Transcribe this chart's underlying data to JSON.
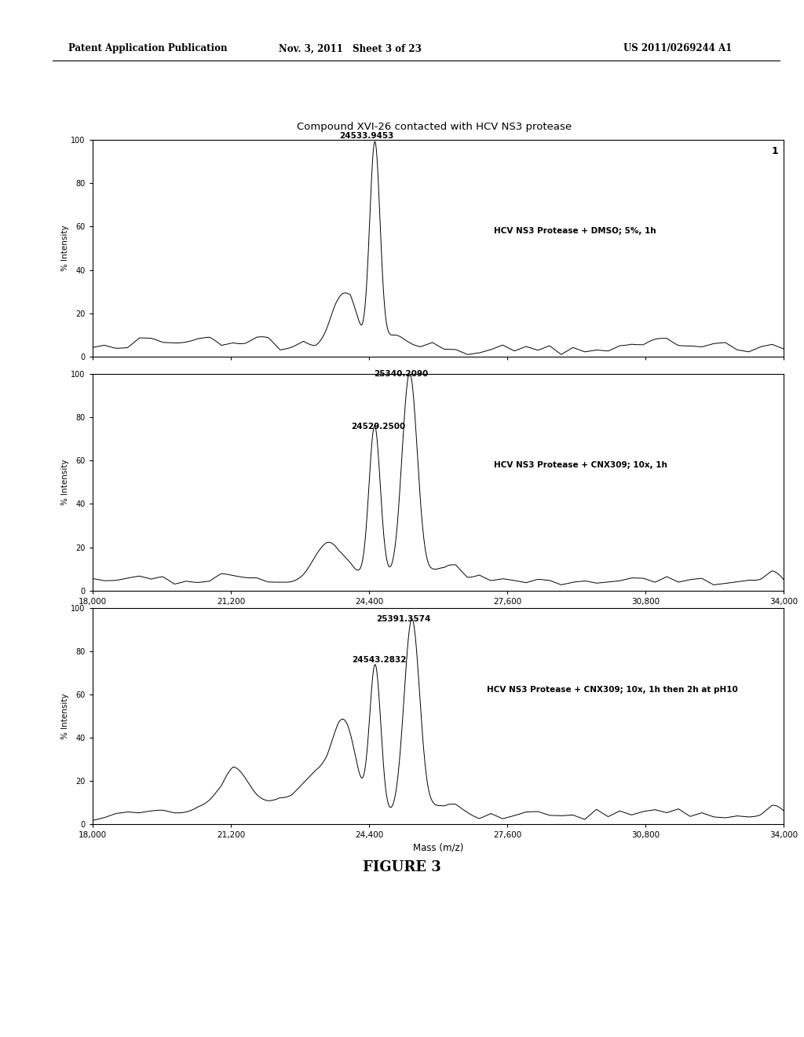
{
  "title": "Compound XVI-26 contacted with HCV NS3 protease",
  "figure_label": "FIGURE 3",
  "header_left": "Patent Application Publication",
  "header_center": "Nov. 3, 2011   Sheet 3 of 23",
  "header_right": "US 2011/0269244 A1",
  "xmin": 18000,
  "xmax": 34000,
  "xticks": [
    18000,
    21200,
    24400,
    27600,
    30800,
    34000
  ],
  "xtick_labels": [
    "18,000",
    "21,200",
    "24,400",
    "27,600",
    "30,800",
    "34,000"
  ],
  "xlabel": "Mass (m/z)",
  "ylabel": "% Intensity",
  "ylim": [
    0,
    100
  ],
  "yticks": [
    0,
    20,
    40,
    60,
    80,
    100
  ],
  "panel1": {
    "label": "1",
    "annotation": "HCV NS3 Protease + DMSO; 5%, 1h",
    "peak1_x": 24533.9453,
    "peak1_label": "24533.9453"
  },
  "panel2": {
    "annotation": "HCV NS3 Protease + CNX309; 10x, 1h",
    "peak1_x": 24529.25,
    "peak1_label": "24529.2500",
    "peak2_x": 25340.209,
    "peak2_label": "25340.2090"
  },
  "panel3": {
    "annotation": "HCV NS3 Protease + CNX309; 10x, 1h then 2h at pH10",
    "peak1_x": 24543.2832,
    "peak1_label": "24543.2832",
    "peak2_x": 25391.3574,
    "peak2_label": "25391.3574"
  },
  "line_color": "#000000",
  "bg_color": "#ffffff",
  "text_color": "#000000"
}
